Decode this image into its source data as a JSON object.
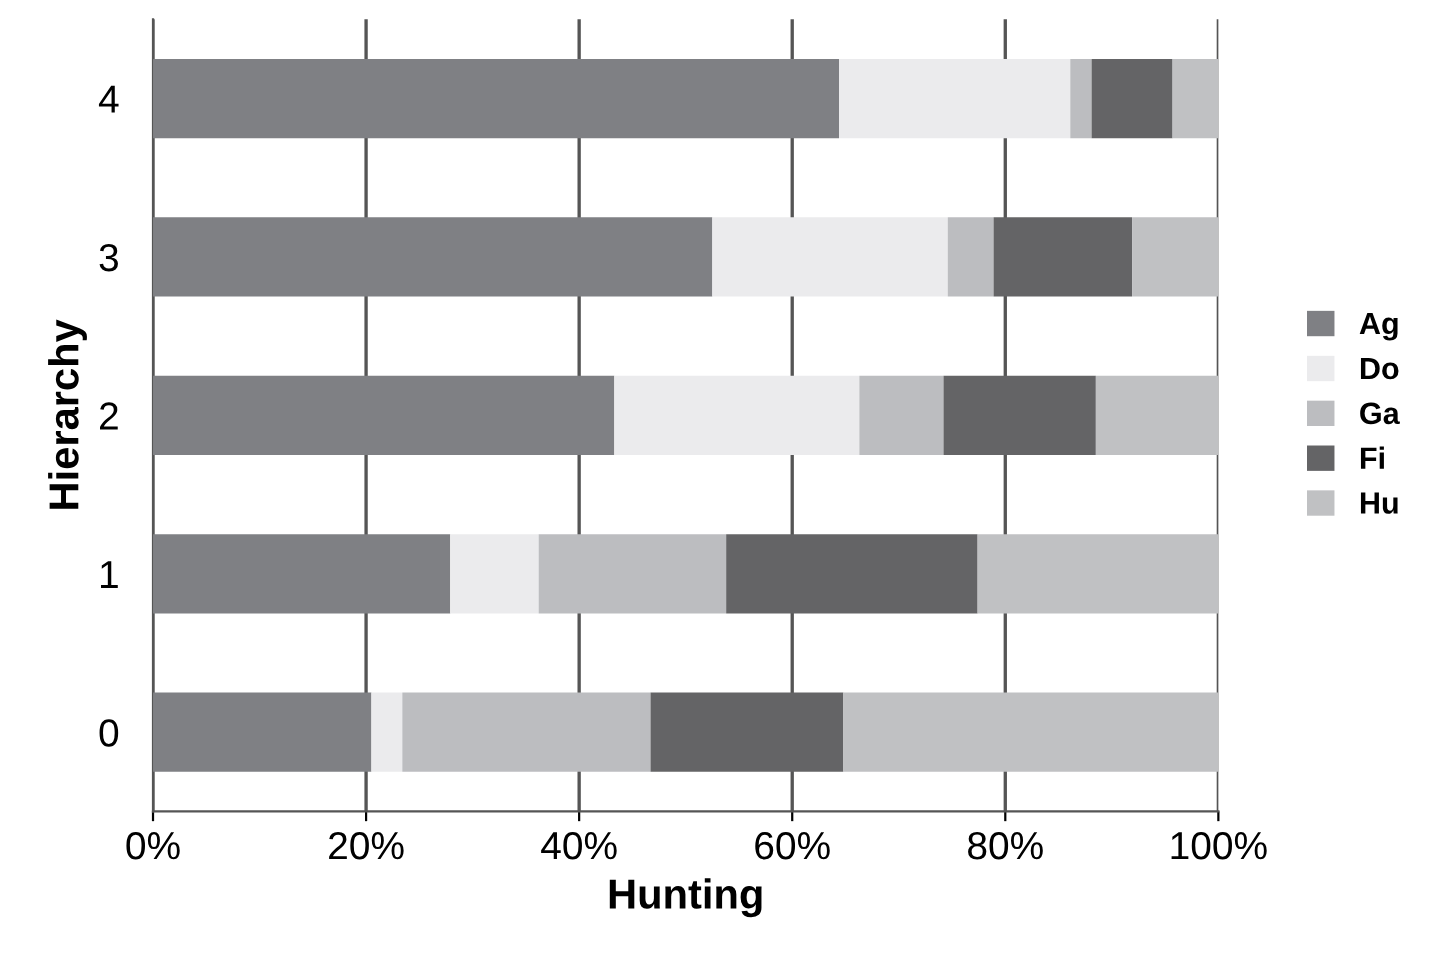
{
  "chart_data": {
    "type": "bar",
    "orientation": "horizontal",
    "stacked": true,
    "xlabel": "Hunting",
    "ylabel": "Hierarchy",
    "categories": [
      "4",
      "3",
      "2",
      "1",
      "0"
    ],
    "series": [
      {
        "name": "Ag",
        "color": "#7f8084",
        "values": [
          64.4,
          52.5,
          43.3,
          27.9,
          20.5
        ]
      },
      {
        "name": "Do",
        "color": "#ebebed",
        "values": [
          21.7,
          22.1,
          23.0,
          8.3,
          2.9
        ]
      },
      {
        "name": "Ga",
        "color": "#bcbdc0",
        "values": [
          2.0,
          4.3,
          7.9,
          17.6,
          23.3
        ]
      },
      {
        "name": "Fi",
        "color": "#646466",
        "values": [
          7.6,
          13.0,
          14.3,
          23.6,
          18.1
        ]
      },
      {
        "name": "Hu",
        "color": "#c0c1c3",
        "values": [
          4.3,
          8.1,
          11.5,
          22.6,
          35.2
        ]
      }
    ],
    "xlim": [
      0,
      100
    ],
    "xticks": [
      {
        "value": 0,
        "label": "0%"
      },
      {
        "value": 20,
        "label": "20%"
      },
      {
        "value": 40,
        "label": "40%"
      },
      {
        "value": 60,
        "label": "60%"
      },
      {
        "value": 80,
        "label": "80%"
      },
      {
        "value": 100,
        "label": "100%"
      }
    ],
    "grid": "x",
    "legend": "right"
  }
}
